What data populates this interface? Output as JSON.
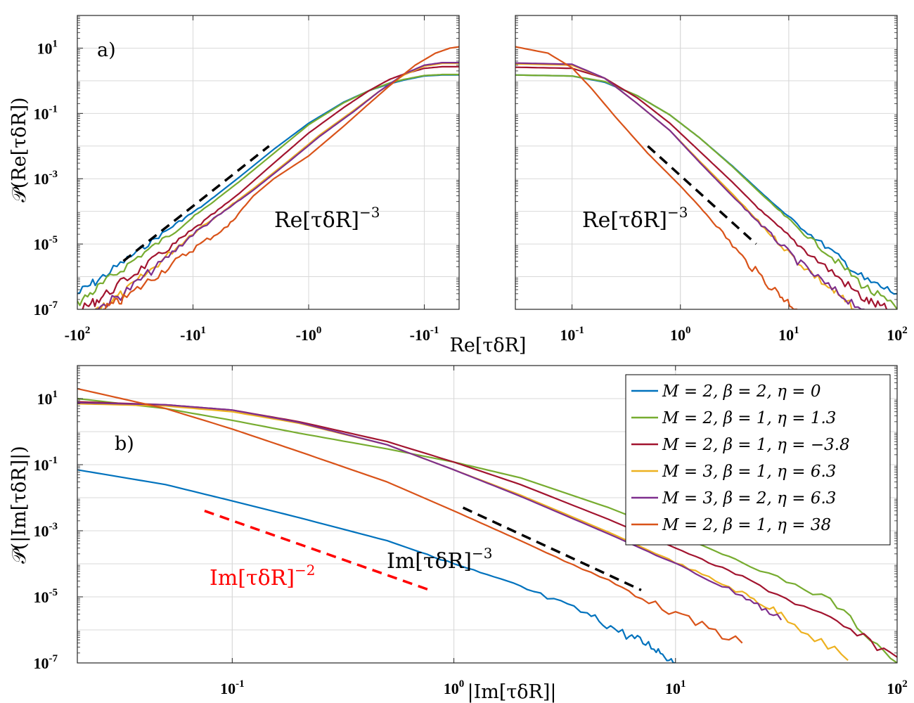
{
  "chart_data": [
    {
      "id": "a_left",
      "type": "line",
      "panel_label": "a)",
      "xscale": "symlog-negative",
      "yscale": "log",
      "xlim": [
        -100,
        -0.05
      ],
      "ylim": [
        1e-07,
        100
      ],
      "xticks": [
        {
          "value": -100,
          "base": "-10",
          "exp": "2"
        },
        {
          "value": -10,
          "base": "-10",
          "exp": "1"
        },
        {
          "value": -1,
          "base": "-10",
          "exp": "0"
        },
        {
          "value": -0.1,
          "base": "-10",
          "exp": "-1"
        }
      ],
      "yticks": [
        {
          "value": 10,
          "base": "10",
          "exp": "1"
        },
        {
          "value": 0.1,
          "base": "10",
          "exp": "-1"
        },
        {
          "value": 0.001,
          "base": "10",
          "exp": "-3"
        },
        {
          "value": 1e-05,
          "base": "10",
          "exp": "-5"
        },
        {
          "value": 1e-07,
          "base": "10",
          "exp": "-7"
        }
      ],
      "ylabel": "𝒫(Re[τδR])",
      "annotation": {
        "text": "Re[τδR]",
        "sup": "−3"
      },
      "reference_line": {
        "x": [
          -40,
          -2.2
        ],
        "y": [
          3e-06,
          0.01
        ],
        "color": "#000000",
        "style": "dashed"
      },
      "series": [
        {
          "name": "M = 2, β = 2, η = 0",
          "color": "#0072bd",
          "x": [
            -100,
            -60,
            -30,
            -15,
            -8,
            -4,
            -2,
            -1,
            -0.5,
            -0.3,
            -0.2,
            -0.15,
            -0.1,
            -0.07,
            -0.05
          ],
          "y": [
            3e-07,
            1e-06,
            6e-06,
            3.5e-05,
            0.00016,
            0.0011,
            0.008,
            0.05,
            0.22,
            0.5,
            0.8,
            1.05,
            1.4,
            1.5,
            1.5
          ]
        },
        {
          "name": "M = 2, β = 1, η = 1.3",
          "color": "#77ac30",
          "x": [
            -100,
            -60,
            -30,
            -15,
            -8,
            -4,
            -2,
            -1,
            -0.5,
            -0.3,
            -0.2,
            -0.15,
            -0.1,
            -0.07,
            -0.05
          ],
          "y": [
            1.5e-07,
            6e-07,
            4e-06,
            2.2e-05,
            0.00012,
            0.0008,
            0.006,
            0.045,
            0.21,
            0.5,
            0.85,
            1.1,
            1.45,
            1.55,
            1.55
          ]
        },
        {
          "name": "M = 2, β = 1, η = −3.8",
          "color": "#a2142f",
          "x": [
            -90,
            -60,
            -30,
            -15,
            -8,
            -4,
            -2,
            -1,
            -0.5,
            -0.3,
            -0.2,
            -0.15,
            -0.1,
            -0.07,
            -0.05
          ],
          "y": [
            1e-07,
            2.5e-07,
            1.5e-06,
            9e-06,
            5e-05,
            0.00035,
            0.003,
            0.025,
            0.15,
            0.5,
            1.1,
            1.6,
            2.4,
            2.7,
            2.7
          ]
        },
        {
          "name": "M = 3, β = 1, η = 6.3",
          "color": "#edb120",
          "x": [
            -70,
            -40,
            -20,
            -10,
            -5,
            -3,
            -1.5,
            -0.8,
            -0.4,
            -0.25,
            -0.15,
            -0.1,
            -0.07,
            -0.05
          ],
          "y": [
            1e-07,
            3e-07,
            2.5e-06,
            2.2e-05,
            0.00013,
            0.0005,
            0.0035,
            0.022,
            0.13,
            0.45,
            1.5,
            2.8,
            3.4,
            3.4
          ]
        },
        {
          "name": "M = 3, β = 2, η = 6.3",
          "color": "#7e2f8e",
          "x": [
            -70,
            -40,
            -20,
            -10,
            -5,
            -3,
            -1.5,
            -0.8,
            -0.4,
            -0.25,
            -0.15,
            -0.1,
            -0.07,
            -0.05
          ],
          "y": [
            1e-07,
            3e-07,
            2.2e-06,
            2e-05,
            0.00012,
            0.00045,
            0.0032,
            0.02,
            0.12,
            0.45,
            1.6,
            3,
            3.6,
            3.6
          ]
        },
        {
          "name": "M = 2, β = 1, η = 38",
          "color": "#d95319",
          "x": [
            -60,
            -40,
            -20,
            -10,
            -5,
            -3,
            -2,
            -1,
            -0.5,
            -0.3,
            -0.2,
            -0.12,
            -0.08,
            -0.06,
            -0.05
          ],
          "y": [
            1e-07,
            2e-07,
            1.2e-06,
            7e-06,
            3.5e-05,
            0.0003,
            0.001,
            0.005,
            0.04,
            0.2,
            0.7,
            3,
            7,
            10,
            11
          ]
        }
      ]
    },
    {
      "id": "a_right",
      "type": "line",
      "xscale": "log",
      "yscale": "log",
      "xlim": [
        0.03,
        100
      ],
      "ylim": [
        1e-07,
        100
      ],
      "xticks": [
        {
          "value": 0.1,
          "base": "10",
          "exp": "-1"
        },
        {
          "value": 1,
          "base": "10",
          "exp": "0"
        },
        {
          "value": 10,
          "base": "10",
          "exp": "1"
        },
        {
          "value": 100,
          "base": "10",
          "exp": "2"
        }
      ],
      "xlabel": "Re[τδR]",
      "annotation": {
        "text": "Re[τδR]",
        "sup": "−3"
      },
      "reference_line": {
        "x": [
          0.5,
          5
        ],
        "y": [
          0.01,
          1e-05
        ],
        "color": "#000000",
        "style": "dashed"
      },
      "series": [
        {
          "name": "M = 2, β = 2, η = 0",
          "color": "#0072bd",
          "x": [
            0.03,
            0.1,
            0.2,
            0.4,
            0.8,
            1.5,
            3,
            6,
            12,
            25,
            50,
            100
          ],
          "y": [
            1.5,
            1.4,
            0.9,
            0.35,
            0.09,
            0.018,
            0.0025,
            0.0003,
            4e-05,
            6e-06,
            8e-07,
            3e-07
          ]
        },
        {
          "name": "M = 2, β = 1, η = 1.3",
          "color": "#77ac30",
          "x": [
            0.03,
            0.1,
            0.2,
            0.4,
            0.8,
            1.5,
            3,
            6,
            12,
            25,
            50,
            100
          ],
          "y": [
            1.5,
            1.4,
            0.95,
            0.35,
            0.09,
            0.018,
            0.0024,
            0.00027,
            3.2e-05,
            4e-06,
            5e-07,
            1e-07
          ]
        },
        {
          "name": "M = 2, β = 1, η = −3.8",
          "color": "#a2142f",
          "x": [
            0.03,
            0.1,
            0.2,
            0.4,
            0.8,
            1.5,
            3,
            6,
            12,
            25,
            50,
            80
          ],
          "y": [
            2.6,
            2.4,
            1.2,
            0.3,
            0.05,
            0.007,
            0.0008,
            8e-05,
            1e-05,
            1.4e-06,
            2e-07,
            1e-07
          ]
        },
        {
          "name": "M = 3, β = 1, η = 6.3",
          "color": "#edb120",
          "x": [
            0.03,
            0.1,
            0.2,
            0.4,
            0.8,
            1.5,
            3,
            6,
            12,
            25,
            40
          ],
          "y": [
            3.3,
            3,
            1.2,
            0.2,
            0.03,
            0.0035,
            0.00035,
            3e-05,
            3e-06,
            4e-07,
            1e-07
          ]
        },
        {
          "name": "M = 3, β = 2, η = 6.3",
          "color": "#7e2f8e",
          "x": [
            0.03,
            0.1,
            0.2,
            0.4,
            0.8,
            1.5,
            3,
            6,
            12,
            25,
            50
          ],
          "y": [
            3.5,
            3.2,
            1.2,
            0.2,
            0.03,
            0.0032,
            0.0003,
            3e-05,
            3e-06,
            4e-07,
            1e-07
          ]
        },
        {
          "name": "M = 2, β = 1, η = 38",
          "color": "#d95319",
          "x": [
            0.03,
            0.06,
            0.1,
            0.15,
            0.25,
            0.5,
            1,
            2,
            4,
            8,
            12
          ],
          "y": [
            11,
            7,
            2.5,
            0.6,
            0.08,
            0.006,
            0.0006,
            5e-05,
            3e-06,
            3e-07,
            1e-07
          ]
        }
      ]
    },
    {
      "id": "b",
      "type": "line",
      "panel_label": "b)",
      "xscale": "log",
      "yscale": "log",
      "xlim": [
        0.02,
        100
      ],
      "ylim": [
        1e-07,
        100
      ],
      "xticks": [
        {
          "value": 0.1,
          "base": "10",
          "exp": "-1"
        },
        {
          "value": 1,
          "base": "10",
          "exp": "0"
        },
        {
          "value": 10,
          "base": "10",
          "exp": "1"
        },
        {
          "value": 100,
          "base": "10",
          "exp": "2"
        }
      ],
      "yticks": [
        {
          "value": 10,
          "base": "10",
          "exp": "1"
        },
        {
          "value": 0.1,
          "base": "10",
          "exp": "-1"
        },
        {
          "value": 0.001,
          "base": "10",
          "exp": "-3"
        },
        {
          "value": 1e-05,
          "base": "10",
          "exp": "-5"
        },
        {
          "value": 1e-07,
          "base": "10",
          "exp": "-7"
        }
      ],
      "xlabel": "|Im[τδR]|",
      "ylabel": "𝒫(|Im[τδR]|)",
      "annotations": [
        {
          "text": "Im[τδR]",
          "sup": "−2",
          "color": "#ff0000"
        },
        {
          "text": "Im[τδR]",
          "sup": "−3",
          "color": "#000000"
        }
      ],
      "reference_lines": [
        {
          "x": [
            0.075,
            0.8
          ],
          "y": [
            0.004,
            1.5e-05
          ],
          "color": "#ff0000",
          "style": "dashed"
        },
        {
          "x": [
            1.1,
            7
          ],
          "y": [
            0.005,
            1.6e-05
          ],
          "color": "#000000",
          "style": "dashed"
        }
      ],
      "series": [
        {
          "name": "M = 2, β = 2, η = 0",
          "color": "#0072bd",
          "x": [
            0.02,
            0.05,
            0.1,
            0.2,
            0.5,
            1,
            2,
            4,
            6,
            8,
            10
          ],
          "y": [
            0.07,
            0.025,
            0.008,
            0.0025,
            0.0005,
            0.0001,
            2e-05,
            3e-06,
            7e-07,
            3e-07,
            1e-07
          ]
        },
        {
          "name": "M = 2, β = 1, η = 1.3",
          "color": "#77ac30",
          "x": [
            0.02,
            0.05,
            0.1,
            0.2,
            0.5,
            1,
            2,
            5,
            10,
            20,
            50,
            100
          ],
          "y": [
            10,
            5,
            2.2,
            0.9,
            0.3,
            0.12,
            0.04,
            0.005,
            0.0008,
            0.00011,
            8e-06,
            1e-07
          ]
        },
        {
          "name": "M = 2, β = 1, η = −3.8",
          "color": "#a2142f",
          "x": [
            0.02,
            0.05,
            0.1,
            0.2,
            0.5,
            1,
            2,
            5,
            10,
            20,
            50,
            100
          ],
          "y": [
            8,
            6.5,
            4.5,
            2,
            0.5,
            0.12,
            0.025,
            0.0022,
            0.0003,
            4e-05,
            2e-06,
            1.5e-07
          ]
        },
        {
          "name": "M = 3, β = 1, η = 6.3",
          "color": "#edb120",
          "x": [
            0.02,
            0.05,
            0.1,
            0.2,
            0.5,
            1,
            2,
            5,
            10,
            20,
            30,
            60
          ],
          "y": [
            7,
            6,
            4,
            1.8,
            0.4,
            0.07,
            0.012,
            0.0009,
            0.00011,
            1.3e-05,
            3e-06,
            1.2e-07
          ]
        },
        {
          "name": "M = 3, β = 2, η = 6.3",
          "color": "#7e2f8e",
          "x": [
            0.02,
            0.05,
            0.1,
            0.2,
            0.5,
            1,
            2,
            5,
            10,
            20,
            30
          ],
          "y": [
            7.5,
            6.5,
            4.5,
            1.9,
            0.4,
            0.07,
            0.011,
            0.0008,
            0.0001,
            1.1e-05,
            2e-06
          ]
        },
        {
          "name": "M = 2, β = 1, η = 38",
          "color": "#d95319",
          "x": [
            0.02,
            0.05,
            0.1,
            0.2,
            0.5,
            1,
            2,
            5,
            10,
            20
          ],
          "y": [
            20,
            5,
            1.2,
            0.25,
            0.03,
            0.004,
            0.0005,
            3e-05,
            3e-06,
            4e-07
          ]
        }
      ]
    }
  ],
  "legend": [
    {
      "label": "M = 2, β = 2, η = 0",
      "color": "#0072bd"
    },
    {
      "label": "M = 2, β = 1, η = 1.3",
      "color": "#77ac30"
    },
    {
      "label": "M = 2, β = 1, η = −3.8",
      "color": "#a2142f"
    },
    {
      "label": "M = 3, β = 1, η = 6.3",
      "color": "#edb120"
    },
    {
      "label": "M = 3, β = 2, η = 6.3",
      "color": "#7e2f8e"
    },
    {
      "label": "M = 2, β = 1, η = 38",
      "color": "#d95319"
    }
  ]
}
